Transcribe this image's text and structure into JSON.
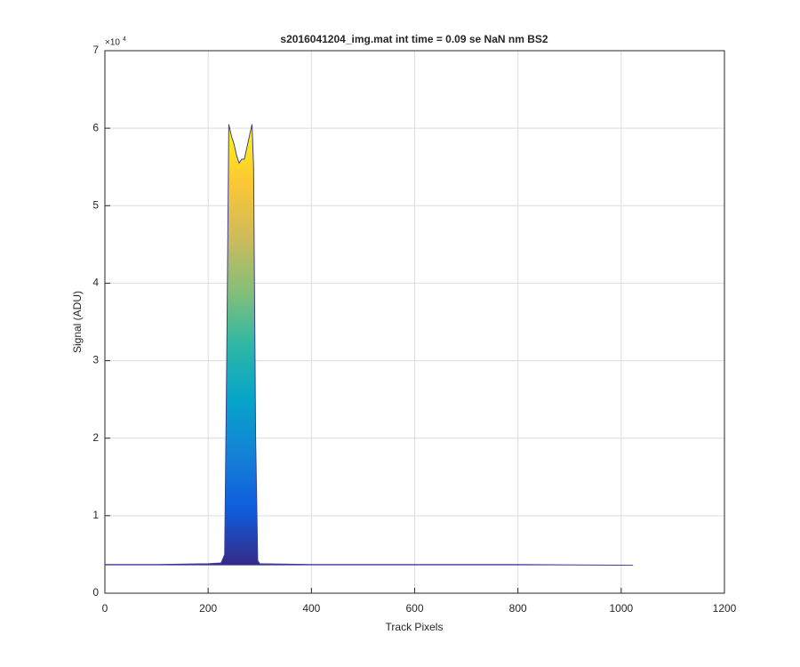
{
  "chart_data": {
    "type": "area",
    "title": "s2016041204_img.mat int time = 0.09 se  NaN nm BS2",
    "xlabel": "Track Pixels",
    "ylabel": "Signal (ADU)",
    "y_multiplier_base": "×10",
    "y_multiplier_exponent": "4",
    "x": [
      0,
      100,
      200,
      225,
      232,
      236,
      240,
      245,
      250,
      255,
      260,
      265,
      270,
      275,
      280,
      285,
      288,
      292,
      296,
      300,
      400,
      600,
      800,
      1023
    ],
    "values": [
      0.37,
      0.37,
      0.38,
      0.39,
      0.5,
      3.0,
      6.05,
      5.9,
      5.8,
      5.65,
      5.55,
      5.6,
      5.6,
      5.75,
      5.9,
      6.05,
      5.5,
      2.0,
      0.42,
      0.38,
      0.37,
      0.37,
      0.37,
      0.36
    ],
    "colormap": [
      "#352a87",
      "#0f5cdd",
      "#1481d6",
      "#06a4ca",
      "#2eb7a4",
      "#87bf77",
      "#d1bb59",
      "#fec832",
      "#f9fb0e"
    ],
    "line_color": "#3b3f99",
    "xlim": [
      0,
      1200
    ],
    "xticks": [
      0,
      200,
      400,
      600,
      800,
      1000,
      1200
    ],
    "ylim": [
      0,
      7
    ],
    "yticks": [
      0,
      1,
      2,
      3,
      4,
      5,
      6,
      7
    ],
    "grid": true
  }
}
